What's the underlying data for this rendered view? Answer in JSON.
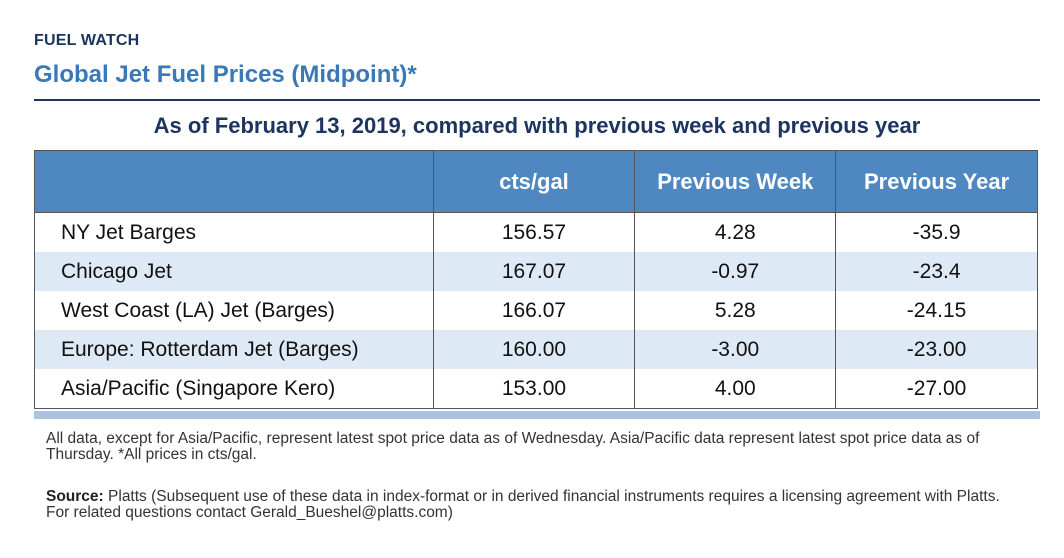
{
  "header": {
    "kicker": "FUEL WATCH",
    "title": "Global Jet Fuel Prices (Midpoint)*",
    "subtitle": "As of February 13, 2019, compared with previous week and previous year"
  },
  "table": {
    "columns": [
      "cts/gal",
      "Previous Week",
      "Previous Year"
    ],
    "rows": [
      [
        "NY Jet Barges",
        "156.57",
        "4.28",
        "-35.9"
      ],
      [
        "Chicago Jet",
        "167.07",
        "-0.97",
        "-23.4"
      ],
      [
        "West Coast (LA) Jet (Barges)",
        "166.07",
        "5.28",
        "-24.15"
      ],
      [
        "Europe: Rotterdam Jet (Barges)",
        "160.00",
        "-3.00",
        "-23.00"
      ],
      [
        "Asia/Pacific (Singapore Kero)",
        "153.00",
        "4.00",
        "-27.00"
      ]
    ]
  },
  "footer": {
    "note": "All data, except for Asia/Pacific, represent latest spot price data as of Wednesday. Asia/Pacific data represent latest spot price data as of Thursday. *All prices in cts/gal.",
    "source_label": "Source:",
    "source": "Platts (Subsequent use of these data in index-format or in derived financial instruments requires a licensing agreement with Platts. For related questions contact Gerald_Bueshel@platts.com)"
  }
}
